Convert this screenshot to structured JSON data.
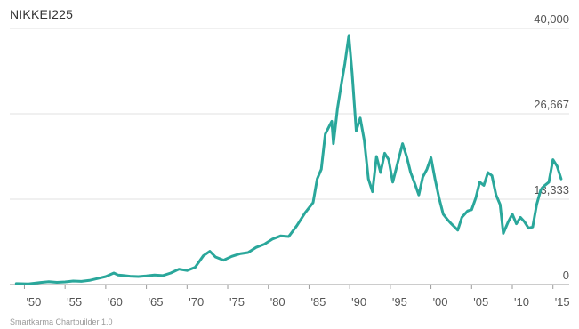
{
  "chart_data": {
    "type": "line",
    "title": "NIKKEI225",
    "xlabel": "",
    "ylabel": "",
    "grid": true,
    "legend": "none",
    "line_color": "#2aa79b",
    "xlim": [
      1948.2,
      1917.0
    ],
    "ylim": [
      0,
      40000
    ],
    "y_ticks": [
      {
        "value": 0,
        "label": "0"
      },
      {
        "value": 13333,
        "label": "13,333"
      },
      {
        "value": 26667,
        "label": "26,667"
      },
      {
        "value": 40000,
        "label": "40,000"
      }
    ],
    "x_ticks": [
      {
        "value": 1950,
        "label": "'50"
      },
      {
        "value": 1955,
        "label": "'55"
      },
      {
        "value": 1960,
        "label": "'60"
      },
      {
        "value": 1965,
        "label": "'65"
      },
      {
        "value": 1970,
        "label": "'70"
      },
      {
        "value": 1975,
        "label": "'75"
      },
      {
        "value": 1980,
        "label": "'80"
      },
      {
        "value": 1985,
        "label": "'85"
      },
      {
        "value": 1990,
        "label": "'90"
      },
      {
        "value": 1995,
        "label": "'95"
      },
      {
        "value": 2000,
        "label": "'00"
      },
      {
        "value": 2005,
        "label": "'05"
      },
      {
        "value": 2010,
        "label": "'10"
      },
      {
        "value": 2015,
        "label": "'15"
      }
    ],
    "series": [
      {
        "values": [
          [
            1949.0,
            150
          ],
          [
            1950.5,
            110
          ],
          [
            1952.0,
            330
          ],
          [
            1953.0,
            450
          ],
          [
            1954.0,
            350
          ],
          [
            1955.0,
            420
          ],
          [
            1956.0,
            550
          ],
          [
            1957.0,
            500
          ],
          [
            1958.0,
            650
          ],
          [
            1959.0,
            950
          ],
          [
            1960.0,
            1250
          ],
          [
            1961.0,
            1800
          ],
          [
            1961.5,
            1500
          ],
          [
            1962.0,
            1450
          ],
          [
            1963.0,
            1300
          ],
          [
            1964.0,
            1250
          ],
          [
            1965.0,
            1350
          ],
          [
            1966.0,
            1500
          ],
          [
            1967.0,
            1400
          ],
          [
            1968.0,
            1800
          ],
          [
            1969.0,
            2400
          ],
          [
            1970.0,
            2200
          ],
          [
            1971.0,
            2700
          ],
          [
            1972.0,
            4500
          ],
          [
            1972.8,
            5200
          ],
          [
            1973.5,
            4300
          ],
          [
            1974.5,
            3800
          ],
          [
            1975.5,
            4400
          ],
          [
            1976.5,
            4800
          ],
          [
            1977.5,
            5000
          ],
          [
            1978.5,
            5800
          ],
          [
            1979.5,
            6300
          ],
          [
            1980.5,
            7100
          ],
          [
            1981.5,
            7600
          ],
          [
            1982.5,
            7500
          ],
          [
            1983.5,
            9200
          ],
          [
            1984.5,
            11200
          ],
          [
            1985.5,
            12800
          ],
          [
            1986.0,
            16500
          ],
          [
            1986.5,
            18000
          ],
          [
            1987.0,
            23500
          ],
          [
            1987.8,
            25500
          ],
          [
            1988.0,
            22000
          ],
          [
            1988.5,
            27500
          ],
          [
            1989.0,
            31500
          ],
          [
            1989.4,
            34500
          ],
          [
            1989.9,
            38900
          ],
          [
            1990.3,
            33000
          ],
          [
            1990.8,
            24000
          ],
          [
            1991.3,
            26000
          ],
          [
            1991.8,
            22500
          ],
          [
            1992.3,
            16500
          ],
          [
            1992.8,
            14500
          ],
          [
            1993.3,
            20000
          ],
          [
            1993.8,
            17500
          ],
          [
            1994.3,
            20500
          ],
          [
            1994.8,
            19500
          ],
          [
            1995.3,
            16000
          ],
          [
            1995.8,
            18500
          ],
          [
            1996.5,
            22000
          ],
          [
            1997.0,
            20000
          ],
          [
            1997.5,
            17500
          ],
          [
            1998.0,
            15800
          ],
          [
            1998.5,
            14000
          ],
          [
            1999.0,
            16800
          ],
          [
            1999.5,
            18000
          ],
          [
            2000.0,
            19800
          ],
          [
            2000.5,
            16500
          ],
          [
            2001.0,
            13500
          ],
          [
            2001.5,
            11000
          ],
          [
            2002.0,
            10200
          ],
          [
            2002.5,
            9500
          ],
          [
            2003.3,
            8500
          ],
          [
            2003.8,
            10500
          ],
          [
            2004.5,
            11500
          ],
          [
            2005.0,
            11700
          ],
          [
            2005.5,
            13500
          ],
          [
            2006.0,
            16000
          ],
          [
            2006.5,
            15500
          ],
          [
            2007.0,
            17500
          ],
          [
            2007.5,
            17000
          ],
          [
            2008.0,
            14000
          ],
          [
            2008.5,
            12500
          ],
          [
            2008.9,
            8000
          ],
          [
            2009.5,
            9800
          ],
          [
            2010.0,
            11000
          ],
          [
            2010.5,
            9500
          ],
          [
            2011.0,
            10500
          ],
          [
            2011.5,
            9800
          ],
          [
            2012.0,
            8800
          ],
          [
            2012.5,
            9000
          ],
          [
            2013.0,
            12500
          ],
          [
            2013.5,
            14800
          ],
          [
            2014.0,
            15500
          ],
          [
            2014.5,
            16000
          ],
          [
            2015.0,
            19500
          ],
          [
            2015.5,
            18500
          ],
          [
            2016.0,
            16500
          ]
        ]
      }
    ]
  },
  "footer": "Smartkarma Chartbuilder 1.0"
}
